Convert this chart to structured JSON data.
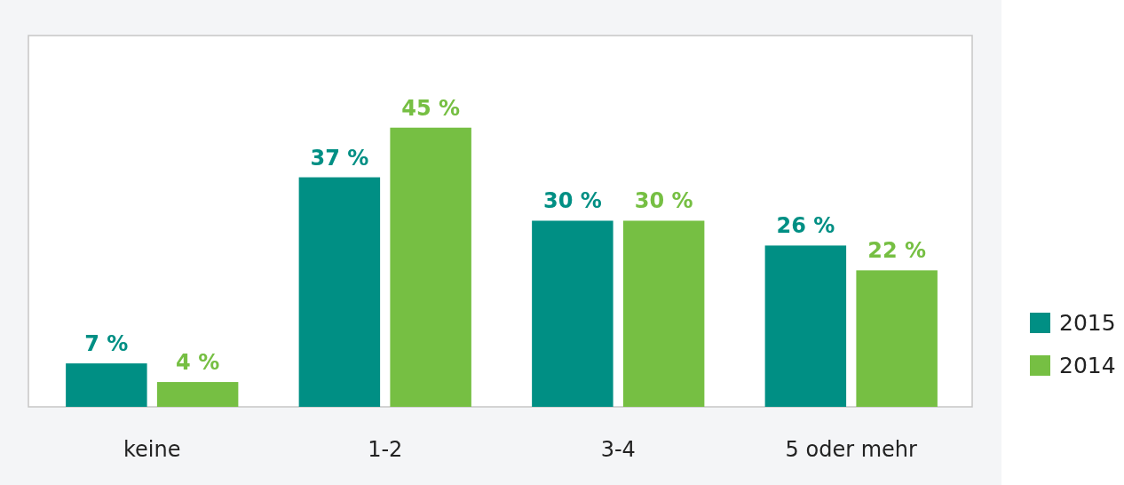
{
  "chart_data": {
    "type": "bar",
    "categories": [
      "keine",
      "1-2",
      "3-4",
      "5 oder mehr"
    ],
    "series": [
      {
        "name": "2015",
        "color": "#008f84",
        "values": [
          7,
          37,
          30,
          26
        ],
        "value_labels": [
          "7 %",
          "37 %",
          "30 %",
          "26 %"
        ]
      },
      {
        "name": "2014",
        "color": "#76bf43",
        "values": [
          4,
          45,
          30,
          22
        ],
        "value_labels": [
          "4 %",
          "45 %",
          "30 %",
          "22 %"
        ]
      }
    ],
    "legend": "right"
  }
}
